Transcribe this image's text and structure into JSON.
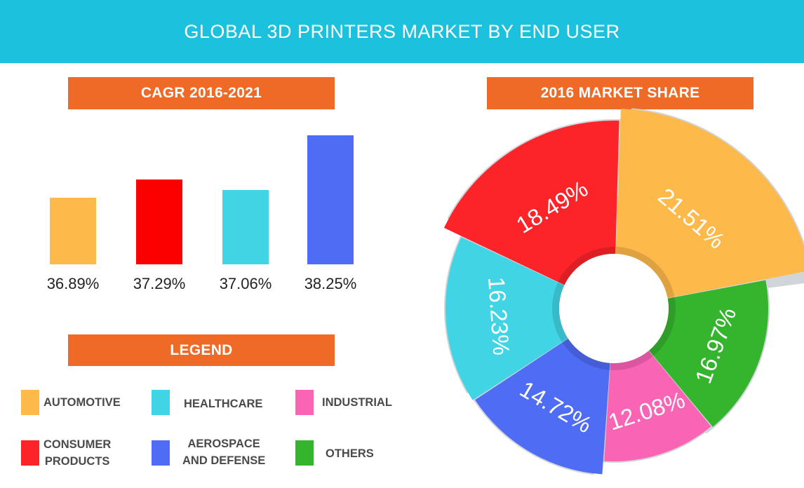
{
  "header": {
    "title": "GLOBAL 3D PRINTERS MARKET BY END USER"
  },
  "sections": {
    "cagr_title": "CAGR 2016-2021",
    "share_title": "2016 MARKET SHARE",
    "legend_title": "LEGEND"
  },
  "colors": {
    "header_bg": "#1cc1dd",
    "tag_bg": "#ef6a26",
    "automotive": "#fdb94a",
    "consumer_products": "#fc2329",
    "healthcare": "#41d4e4",
    "aerospace_and_defense": "#4f6cf5",
    "industrial": "#f964b5",
    "others": "#35b42e"
  },
  "legend": [
    {
      "label": "AUTOMOTIVE",
      "color": "#fdb94a"
    },
    {
      "label": "HEALTHCARE",
      "color": "#41d4e4"
    },
    {
      "label": "INDUSTRIAL",
      "color": "#f964b5"
    },
    {
      "label": "CONSUMER PRODUCTS",
      "color": "#fc2329"
    },
    {
      "label": "AEROSPACE AND DEFENSE",
      "color": "#4f6cf5"
    },
    {
      "label": "OTHERS",
      "color": "#35b42e"
    }
  ],
  "chart_data": [
    {
      "type": "bar",
      "title": "CAGR 2016-2021",
      "categories": [
        "AUTOMOTIVE",
        "CONSUMER PRODUCTS",
        "HEALTHCARE",
        "AEROSPACE AND DEFENSE"
      ],
      "values": [
        36.89,
        37.29,
        37.06,
        38.25
      ],
      "value_labels": [
        "36.89%",
        "37.29%",
        "37.06%",
        "38.25%"
      ],
      "colors": [
        "#fdb94a",
        "#fc0000",
        "#41d4e4",
        "#4f6cf5"
      ],
      "unit": "%",
      "ylim": [
        35.45,
        38.25
      ],
      "grid": false
    },
    {
      "type": "pie",
      "title": "2016 MARKET SHARE",
      "categories": [
        "AUTOMOTIVE",
        "OTHERS",
        "INDUSTRIAL",
        "AEROSPACE AND DEFENSE",
        "HEALTHCARE",
        "CONSUMER PRODUCTS"
      ],
      "values": [
        21.51,
        16.97,
        12.08,
        14.72,
        16.23,
        18.49
      ],
      "value_labels": [
        "21.51%",
        "16.97%",
        "12.08%",
        "14.72%",
        "16.23%",
        "18.49%"
      ],
      "colors": [
        "#fdb94a",
        "#35b42e",
        "#f964b5",
        "#4f6cf5",
        "#41d4e4",
        "#fc2329"
      ],
      "donut": true
    }
  ]
}
